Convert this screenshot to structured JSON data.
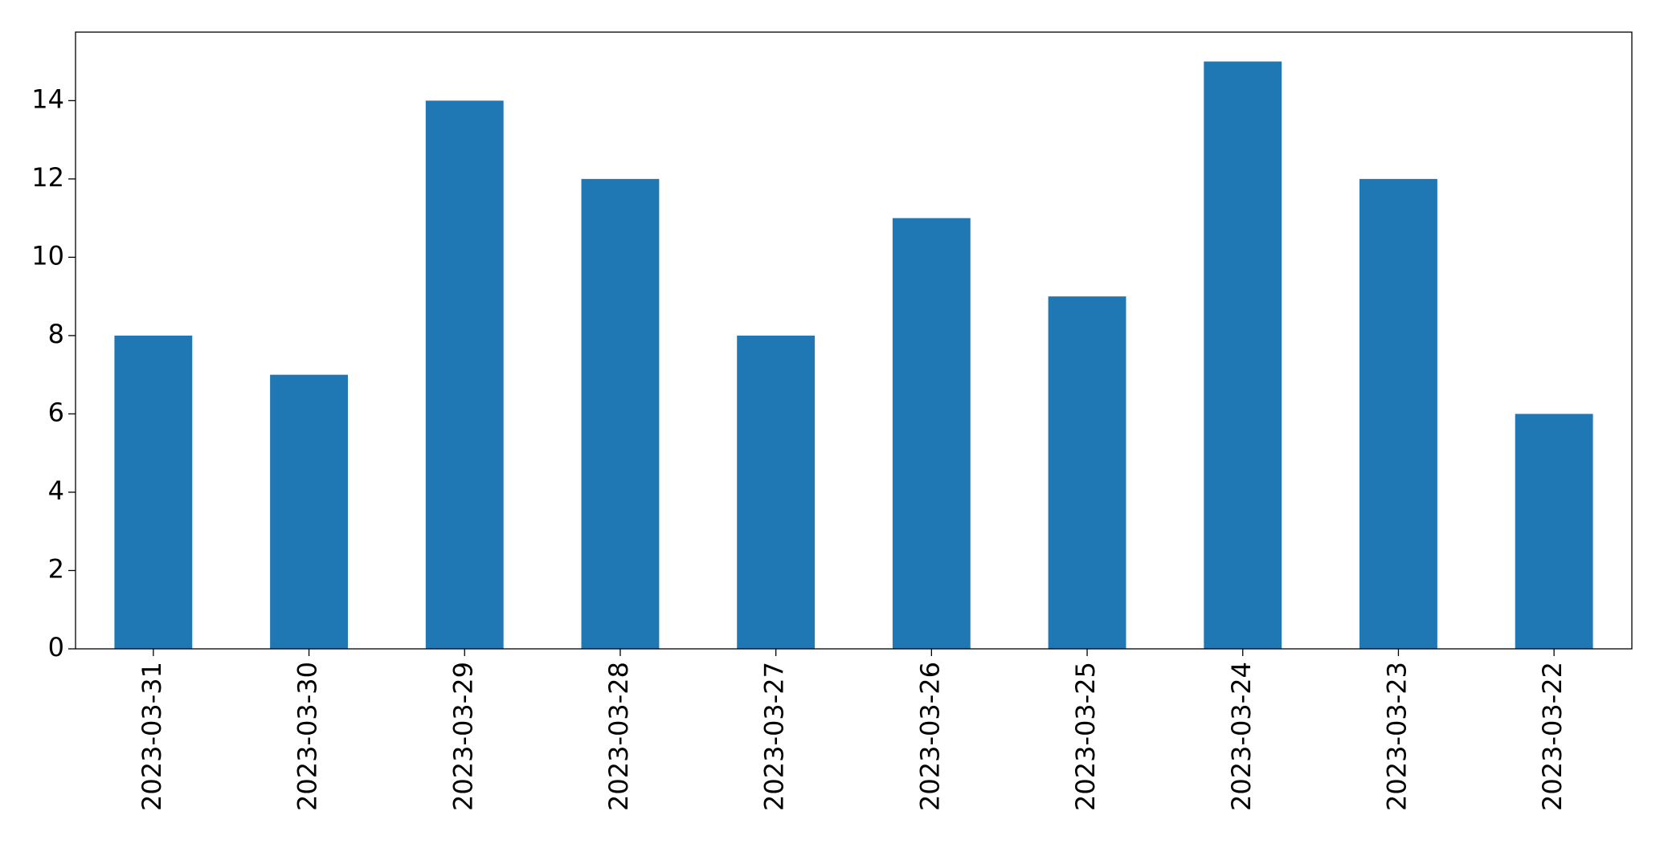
{
  "chart_data": {
    "type": "bar",
    "categories": [
      "2023-03-31",
      "2023-03-30",
      "2023-03-29",
      "2023-03-28",
      "2023-03-27",
      "2023-03-26",
      "2023-03-25",
      "2023-03-24",
      "2023-03-23",
      "2023-03-22"
    ],
    "values": [
      8,
      7,
      14,
      12,
      8,
      11,
      9,
      15,
      12,
      6
    ],
    "color": "#1f77b4",
    "ylim": [
      0,
      15.75
    ],
    "yticks": [
      0,
      2,
      4,
      6,
      8,
      10,
      12,
      14
    ],
    "grid": false
  }
}
